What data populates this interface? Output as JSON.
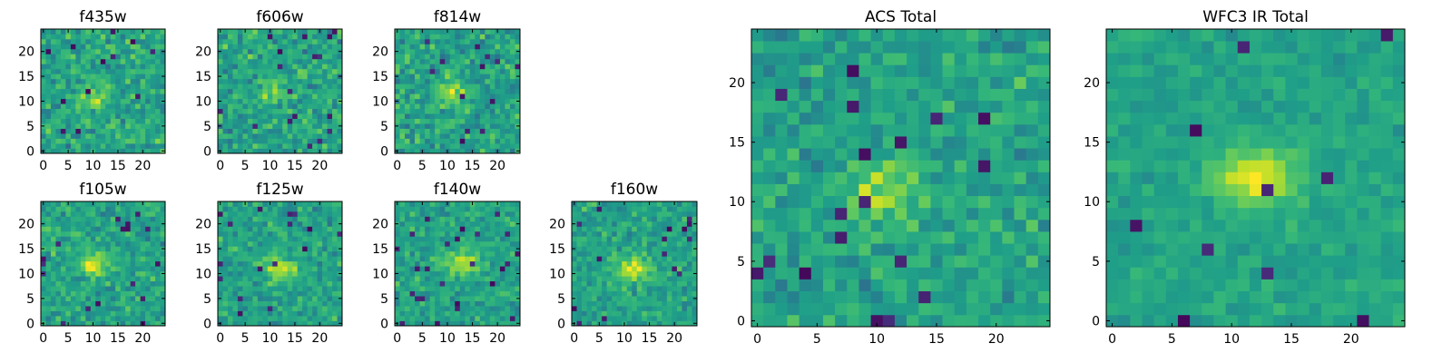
{
  "chart_data": {
    "type": "heatmap",
    "colormap": "viridis",
    "panels": [
      {
        "title": "f435w",
        "grid": 25,
        "xticks": [
          0,
          5,
          10,
          15,
          20
        ],
        "yticks": [
          0,
          5,
          10,
          15,
          20
        ],
        "source_center": [
          10,
          11
        ],
        "signal": 0.22,
        "noise": 0.24,
        "seed": 11
      },
      {
        "title": "f606w",
        "grid": 25,
        "xticks": [
          0,
          5,
          10,
          15,
          20
        ],
        "yticks": [
          0,
          5,
          10,
          15,
          20
        ],
        "source_center": [
          11,
          12
        ],
        "signal": 0.25,
        "noise": 0.24,
        "seed": 23
      },
      {
        "title": "f814w",
        "grid": 25,
        "xticks": [
          0,
          5,
          10,
          15,
          20
        ],
        "yticks": [
          0,
          5,
          10,
          15,
          20
        ],
        "source_center": [
          11,
          12
        ],
        "signal": 0.28,
        "noise": 0.24,
        "seed": 37
      },
      {
        "title": "f105w",
        "grid": 25,
        "xticks": [
          0,
          5,
          10,
          15,
          20
        ],
        "yticks": [
          0,
          5,
          10,
          15,
          20
        ],
        "source_center": [
          10,
          12
        ],
        "signal": 0.32,
        "noise": 0.2,
        "seed": 41
      },
      {
        "title": "f125w",
        "grid": 25,
        "xticks": [
          0,
          5,
          10,
          15,
          20
        ],
        "yticks": [
          0,
          5,
          10,
          15,
          20
        ],
        "source_center": [
          12,
          11
        ],
        "signal": 0.32,
        "noise": 0.2,
        "seed": 53
      },
      {
        "title": "f140w",
        "grid": 25,
        "xticks": [
          0,
          5,
          10,
          15,
          20
        ],
        "yticks": [
          0,
          5,
          10,
          15,
          20
        ],
        "source_center": [
          13,
          12
        ],
        "signal": 0.36,
        "noise": 0.18,
        "seed": 67
      },
      {
        "title": "f160w",
        "grid": 25,
        "xticks": [
          0,
          5,
          10,
          15,
          20
        ],
        "yticks": [
          0,
          5,
          10,
          15,
          20
        ],
        "source_center": [
          12,
          11
        ],
        "signal": 0.38,
        "noise": 0.18,
        "seed": 79
      },
      {
        "title": "ACS Total",
        "grid": 25,
        "xticks": [
          0,
          5,
          10,
          15,
          20
        ],
        "yticks": [
          0,
          5,
          10,
          15,
          20
        ],
        "source_center": [
          11,
          11
        ],
        "signal": 0.3,
        "noise": 0.2,
        "seed": 83
      },
      {
        "title": "WFC3 IR Total",
        "grid": 25,
        "xticks": [
          0,
          5,
          10,
          15,
          20
        ],
        "yticks": [
          0,
          5,
          10,
          15,
          20
        ],
        "source_center": [
          12,
          12
        ],
        "signal": 0.42,
        "noise": 0.11,
        "seed": 97
      }
    ]
  }
}
